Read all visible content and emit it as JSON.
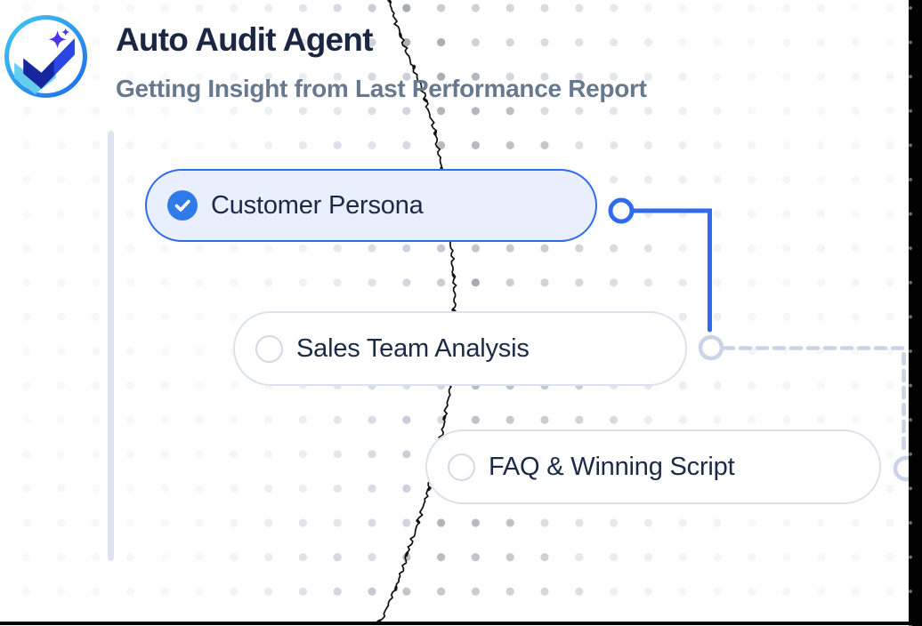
{
  "header": {
    "title": "Auto Audit Agent",
    "subtitle": "Getting Insight from Last Performance Report",
    "logo_icon": "double-checkmark-sparkle-badge"
  },
  "workflow": {
    "steps": [
      {
        "label": "Customer Persona",
        "status": "completed",
        "icon": "check-circle-icon"
      },
      {
        "label": "Sales Team Analysis",
        "status": "pending",
        "icon": "radio-empty-icon"
      },
      {
        "label": "FAQ & Winning Script",
        "status": "pending",
        "icon": "radio-empty-icon"
      }
    ]
  },
  "colors": {
    "accent_blue": "#2F6BEB",
    "check_blue": "#2E7BE9",
    "active_pill_bg": "#E9EFFC",
    "inactive_border": "#DBE2EE",
    "connector_gray": "#CBD4E6",
    "title_navy": "#1A2642",
    "subtitle_slate": "#66798F",
    "rail": "#DCE3F1",
    "ink": "#0D0D0D",
    "logo_cyan": "#67CDEF",
    "logo_navy": "#16269E",
    "logo_bright_blue": "#2A46E6",
    "sparkle_violet": "#4B36E9"
  }
}
